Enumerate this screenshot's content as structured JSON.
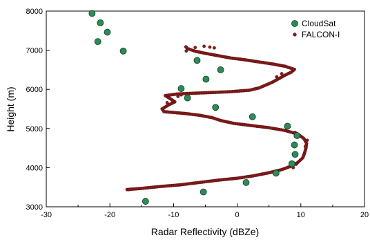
{
  "chart_data": {
    "type": "scatter",
    "xlabel": "Radar Reflectivity (dBZe)",
    "ylabel": "Height (m)",
    "xlim": [
      -30,
      20
    ],
    "ylim": [
      3000,
      8000
    ],
    "x_ticks": [
      -30,
      -20,
      -10,
      0,
      10,
      20
    ],
    "y_ticks": [
      3000,
      4000,
      5000,
      6000,
      7000,
      8000
    ],
    "x_tick_labels": [
      "-30",
      "-20",
      "-10",
      "0",
      "10",
      "20"
    ],
    "y_tick_labels": [
      "3000",
      "4000",
      "5000",
      "6000",
      "7000",
      "8000"
    ],
    "grid": false,
    "legend_position": "top-right",
    "series": [
      {
        "name": "CloudSat",
        "color": "#2e8b57",
        "marker": "circle",
        "points": [
          [
            -22.8,
            7940
          ],
          [
            -21.5,
            7700
          ],
          [
            -20.4,
            7460
          ],
          [
            -21.9,
            7220
          ],
          [
            -17.9,
            6980
          ],
          [
            -6.3,
            6740
          ],
          [
            -2.6,
            6500
          ],
          [
            -4.9,
            6260
          ],
          [
            -8.8,
            6020
          ],
          [
            -7.8,
            5780
          ],
          [
            -3.4,
            5540
          ],
          [
            2.4,
            5300
          ],
          [
            7.9,
            5060
          ],
          [
            9.4,
            4820
          ],
          [
            9.0,
            4580
          ],
          [
            9.1,
            4340
          ],
          [
            8.6,
            4100
          ],
          [
            6.1,
            3860
          ],
          [
            1.4,
            3620
          ],
          [
            -5.3,
            3380
          ],
          [
            -14.4,
            3140
          ]
        ]
      },
      {
        "name": "FALCON-I",
        "color": "#8b1a1a",
        "marker": "dot",
        "path": [
          [
            -17.3,
            3440
          ],
          [
            -15.0,
            3470
          ],
          [
            -12.0,
            3520
          ],
          [
            -9.0,
            3560
          ],
          [
            -6.0,
            3620
          ],
          [
            -3.0,
            3680
          ],
          [
            0.0,
            3730
          ],
          [
            2.5,
            3790
          ],
          [
            5.0,
            3870
          ],
          [
            7.0,
            3950
          ],
          [
            8.5,
            4040
          ],
          [
            9.5,
            4130
          ],
          [
            10.3,
            4250
          ],
          [
            10.6,
            4380
          ],
          [
            10.8,
            4500
          ],
          [
            10.9,
            4620
          ],
          [
            10.5,
            4740
          ],
          [
            9.5,
            4860
          ],
          [
            7.5,
            4950
          ],
          [
            5.0,
            5020
          ],
          [
            2.0,
            5080
          ],
          [
            -0.5,
            5130
          ],
          [
            -2.5,
            5200
          ],
          [
            -4.0,
            5280
          ],
          [
            -6.0,
            5340
          ],
          [
            -8.0,
            5380
          ],
          [
            -10.0,
            5410
          ],
          [
            -11.5,
            5430
          ],
          [
            -11.8,
            5500
          ],
          [
            -10.8,
            5600
          ],
          [
            -9.8,
            5680
          ],
          [
            -10.5,
            5760
          ],
          [
            -11.3,
            5840
          ],
          [
            -9.5,
            5880
          ],
          [
            -7.0,
            5900
          ],
          [
            -4.0,
            5920
          ],
          [
            -1.0,
            5940
          ],
          [
            2.0,
            5980
          ],
          [
            3.5,
            6040
          ],
          [
            4.5,
            6110
          ],
          [
            5.5,
            6180
          ],
          [
            6.5,
            6270
          ],
          [
            7.5,
            6360
          ],
          [
            8.5,
            6440
          ],
          [
            9.0,
            6510
          ],
          [
            7.5,
            6590
          ],
          [
            5.5,
            6650
          ],
          [
            3.0,
            6710
          ],
          [
            1.0,
            6760
          ],
          [
            -1.0,
            6800
          ],
          [
            -3.0,
            6860
          ],
          [
            -5.0,
            6920
          ],
          [
            -6.5,
            6970
          ],
          [
            -7.8,
            7040
          ],
          [
            -8.2,
            7110
          ]
        ],
        "scatter_extra": [
          [
            -17.0,
            3440
          ],
          [
            -16.8,
            3450
          ],
          [
            -15.8,
            3460
          ],
          [
            -9.3,
            5820
          ],
          [
            -8.8,
            5860
          ],
          [
            -10.2,
            5720
          ],
          [
            -11.0,
            5660
          ],
          [
            -5.2,
            7100
          ],
          [
            -4.3,
            7080
          ],
          [
            -3.6,
            7060
          ],
          [
            -6.6,
            7070
          ],
          [
            -8.0,
            6980
          ],
          [
            -6.0,
            6960
          ],
          [
            7.0,
            6400
          ],
          [
            6.2,
            6320
          ],
          [
            9.3,
            4090
          ],
          [
            8.8,
            4000
          ],
          [
            10.7,
            4540
          ],
          [
            11.0,
            4700
          ],
          [
            9.1,
            4900
          ]
        ]
      }
    ]
  }
}
